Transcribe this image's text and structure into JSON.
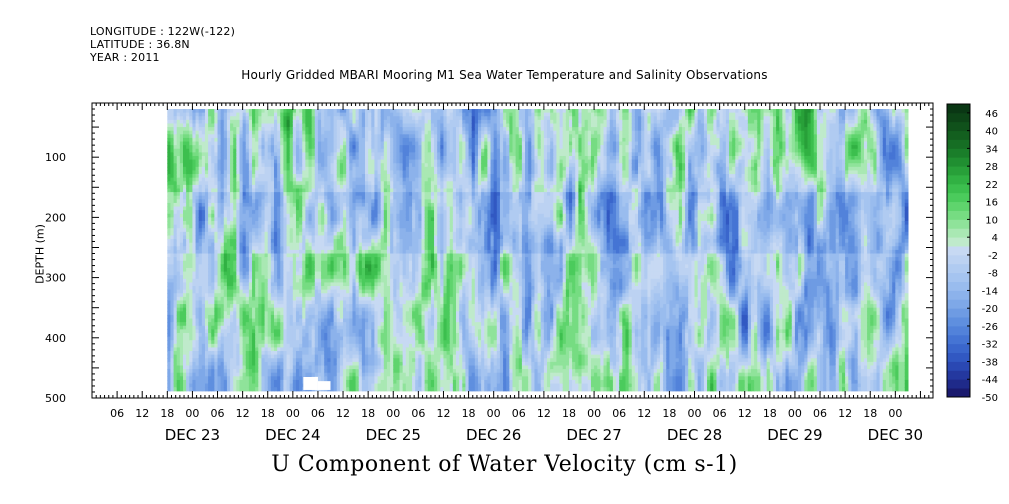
{
  "header": {
    "longitude": "LONGITUDE : 122W(-122)",
    "latitude": "LATITUDE : 36.8N",
    "year": "YEAR : 2011"
  },
  "chart_data": {
    "type": "heatmap",
    "title": "Hourly Gridded MBARI Mooring M1 Sea Water Temperature and Salinity Observations",
    "xlabel": "U Component of Water Velocity (cm s-1)",
    "ylabel": "DEPTH (m)",
    "x_hour_ticks": [
      "06",
      "12",
      "18",
      "00",
      "06",
      "12",
      "18",
      "00",
      "06",
      "12",
      "18",
      "00",
      "06",
      "12",
      "18",
      "00",
      "06",
      "12",
      "18",
      "00",
      "06",
      "12",
      "18",
      "00",
      "06",
      "12",
      "18",
      "00",
      "06",
      "12",
      "18",
      "00"
    ],
    "x_date_labels": [
      {
        "label": "DEC 23",
        "hour": 24
      },
      {
        "label": "DEC 24",
        "hour": 48
      },
      {
        "label": "DEC 25",
        "hour": 72
      },
      {
        "label": "DEC 26",
        "hour": 96
      },
      {
        "label": "DEC 27",
        "hour": 120
      },
      {
        "label": "DEC 28",
        "hour": 144
      },
      {
        "label": "DEC 29",
        "hour": 168
      },
      {
        "label": "DEC 30",
        "hour": 192
      }
    ],
    "x_range_hours": [
      0,
      201
    ],
    "data_x_range_hours": [
      18,
      195
    ],
    "y_range": [
      500,
      10
    ],
    "y_ticks": [
      100,
      200,
      300,
      400,
      500
    ],
    "data_depth_range": [
      20,
      485
    ],
    "colorbar": {
      "labels": [
        46,
        40,
        34,
        28,
        22,
        16,
        10,
        4,
        -2,
        -8,
        -14,
        -20,
        -26,
        -32,
        -38,
        -44,
        -50
      ],
      "levels": [
        -50,
        -47,
        -44,
        -41,
        -38,
        -35,
        -32,
        -29,
        -26,
        -23,
        -20,
        -17,
        -14,
        -11,
        -8,
        -5,
        -2,
        1,
        4,
        7,
        10,
        13,
        16,
        19,
        22,
        25,
        28,
        31,
        34,
        37,
        40,
        43,
        46,
        49
      ],
      "colors": [
        "#1a1a6e",
        "#1f2a8a",
        "#24389f",
        "#2a48b3",
        "#3158c2",
        "#3a66cc",
        "#4574d4",
        "#5282da",
        "#5f8fdf",
        "#6e9be3",
        "#7ea8e8",
        "#8cb2eb",
        "#99bcee",
        "#a5c4f0",
        "#b0cbf1",
        "#bcd2f2",
        "#c7d9f3",
        "#bfeacb",
        "#a9e8b3",
        "#8fe39a",
        "#76dc82",
        "#5fd46d",
        "#4bcb5c",
        "#3cbf4e",
        "#31b143",
        "#28a039",
        "#208f31",
        "#1a7e2a",
        "#166e24",
        "#135f1f",
        "#10511b",
        "#0d4417",
        "#0a3714"
      ]
    },
    "value_range": [
      -50,
      46
    ],
    "note": "U velocity field (cm/s) by depth and time; mostly between -20 and +20 with vertical banding"
  }
}
